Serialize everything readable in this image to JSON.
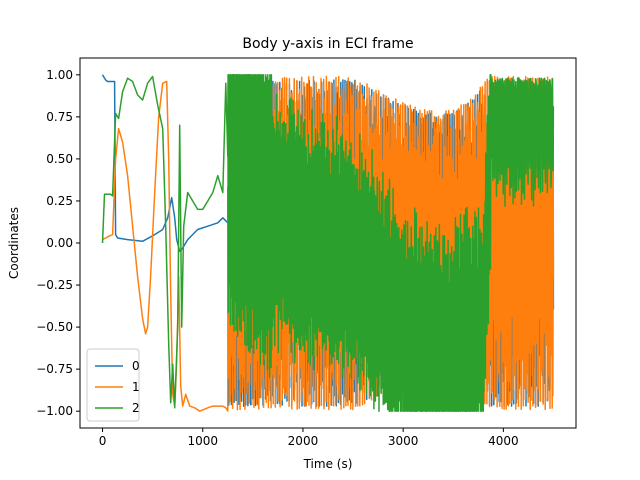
{
  "chart_data": {
    "type": "line",
    "title": "Body y-axis in ECI frame",
    "xlabel": "Time (s)",
    "ylabel": "Coordinates",
    "xlim": [
      -225,
      4725
    ],
    "ylim": [
      -1.1,
      1.1
    ],
    "xticks": [
      0,
      1000,
      2000,
      3000,
      4000
    ],
    "xtick_labels": [
      "0",
      "1000",
      "2000",
      "3000",
      "4000"
    ],
    "yticks": [
      -1.0,
      -0.75,
      -0.5,
      -0.25,
      0.0,
      0.25,
      0.5,
      0.75,
      1.0
    ],
    "ytick_labels": [
      "−1.00",
      "−0.75",
      "−0.50",
      "−0.25",
      "0.00",
      "0.25",
      "0.50",
      "0.75",
      "1.00"
    ],
    "grid": false,
    "legend_position": "lower-left",
    "series": [
      {
        "name": "0",
        "color": "#1f77b4",
        "x": [
          0,
          30,
          50,
          80,
          120,
          130,
          150,
          250,
          400,
          520,
          600,
          650,
          690,
          720,
          740,
          770,
          800,
          850,
          950,
          1050,
          1150,
          1200,
          1250,
          1280
        ],
        "y": [
          1.0,
          0.97,
          0.96,
          0.96,
          0.96,
          0.05,
          0.03,
          0.02,
          0.01,
          0.05,
          0.08,
          0.15,
          0.27,
          0.15,
          0.02,
          -0.05,
          -0.03,
          0.02,
          0.08,
          0.1,
          0.12,
          0.15,
          0.12,
          -0.02
        ]
      },
      {
        "name": "1",
        "color": "#ff7f0e",
        "x": [
          0,
          30,
          60,
          100,
          130,
          160,
          200,
          250,
          300,
          350,
          400,
          430,
          450,
          480,
          520,
          560,
          600,
          640,
          660,
          680,
          700,
          720,
          740,
          760,
          780,
          800,
          830,
          870,
          920,
          970,
          1050,
          1100,
          1150,
          1200,
          1230
        ],
        "y": [
          0.02,
          0.03,
          0.04,
          0.05,
          0.5,
          0.68,
          0.6,
          0.4,
          0.1,
          -0.2,
          -0.45,
          -0.54,
          -0.5,
          -0.2,
          0.3,
          0.75,
          0.95,
          0.96,
          0.5,
          -0.3,
          -0.9,
          -0.97,
          -0.7,
          -0.2,
          -0.85,
          -0.97,
          -0.9,
          -0.97,
          -0.98,
          -1.0,
          -0.98,
          -0.97,
          -0.97,
          -0.97,
          -0.98
        ]
      },
      {
        "name": "2",
        "color": "#2ca02c",
        "x": [
          0,
          20,
          40,
          80,
          100,
          130,
          160,
          200,
          250,
          300,
          350,
          400,
          450,
          500,
          550,
          600,
          630,
          660,
          680,
          700,
          720,
          750,
          770,
          790,
          810,
          850,
          900,
          950,
          1000,
          1050,
          1100,
          1150,
          1200,
          1230
        ],
        "y": [
          0.0,
          0.29,
          0.29,
          0.29,
          0.28,
          0.77,
          0.74,
          0.9,
          0.98,
          0.96,
          0.88,
          0.85,
          0.95,
          0.99,
          0.82,
          0.68,
          0.1,
          -0.6,
          -0.95,
          -0.72,
          -0.98,
          -0.5,
          0.7,
          -0.5,
          0.1,
          0.3,
          0.25,
          0.2,
          0.2,
          0.25,
          0.3,
          0.4,
          0.3,
          0.95
        ]
      }
    ],
    "oscillation_region": {
      "x_start": 1250,
      "x_end": 4500,
      "description_omitted": true
    }
  }
}
